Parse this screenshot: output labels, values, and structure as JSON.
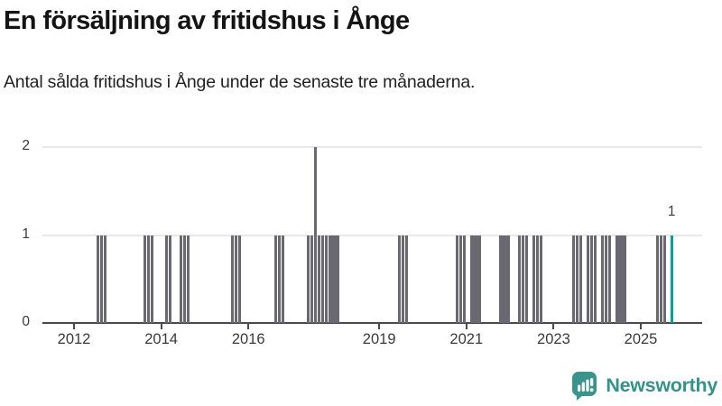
{
  "header": {
    "title": "En försäljning av fritidshus i Ånge",
    "subtitle": "Antal sålda fritidshus i Ånge under de senaste tre månaderna."
  },
  "colors": {
    "bar": "#6a6971",
    "accent": "#00a29a",
    "brand_icon": "#3a938c",
    "brand_text": "#35918b",
    "grid": "#e7e7e7",
    "axis": "#4a4a4c",
    "text": "#3a3a3a"
  },
  "chart_data": {
    "type": "bar",
    "title": "En försäljning av fritidshus i Ånge",
    "subtitle": "Antal sålda fritidshus i Ånge under de senaste tre månaderna.",
    "ylabel": "",
    "xlabel": "",
    "ylim": [
      0,
      2.15
    ],
    "yticks": [
      0,
      1,
      2
    ],
    "gridlines": [
      1,
      2
    ],
    "xticks": [
      2012,
      2014,
      2016,
      2019,
      2021,
      2023,
      2025
    ],
    "x_domain_years": [
      2011.28,
      2026.41
    ],
    "legend": "none",
    "highlight_month": "2025-09",
    "annotation": {
      "text": "1",
      "month": "2025-09"
    },
    "bars": [
      {
        "month": "2012-07",
        "value": 1
      },
      {
        "month": "2012-08",
        "value": 1
      },
      {
        "month": "2012-09",
        "value": 1
      },
      {
        "month": "2013-08",
        "value": 1
      },
      {
        "month": "2013-09",
        "value": 1
      },
      {
        "month": "2013-10",
        "value": 1
      },
      {
        "month": "2014-02",
        "value": 1
      },
      {
        "month": "2014-03",
        "value": 1
      },
      {
        "month": "2014-06",
        "value": 1
      },
      {
        "month": "2014-07",
        "value": 1
      },
      {
        "month": "2014-08",
        "value": 1
      },
      {
        "month": "2015-08",
        "value": 1
      },
      {
        "month": "2015-09",
        "value": 1
      },
      {
        "month": "2015-10",
        "value": 1
      },
      {
        "month": "2016-08",
        "value": 1
      },
      {
        "month": "2016-09",
        "value": 1
      },
      {
        "month": "2016-10",
        "value": 1
      },
      {
        "month": "2017-05",
        "value": 1
      },
      {
        "month": "2017-06",
        "value": 1
      },
      {
        "month": "2017-07",
        "value": 2
      },
      {
        "month": "2017-08",
        "value": 1
      },
      {
        "month": "2017-09",
        "value": 1
      },
      {
        "month": "2017-10",
        "value": 1
      },
      {
        "month": "2017-11",
        "value": 1
      },
      {
        "month": "2017-12",
        "value": 1
      },
      {
        "month": "2018-01",
        "value": 1
      },
      {
        "month": "2019-06",
        "value": 1
      },
      {
        "month": "2019-07",
        "value": 1
      },
      {
        "month": "2019-08",
        "value": 1
      },
      {
        "month": "2020-10",
        "value": 1
      },
      {
        "month": "2020-11",
        "value": 1
      },
      {
        "month": "2020-12",
        "value": 1
      },
      {
        "month": "2021-02",
        "value": 1
      },
      {
        "month": "2021-03",
        "value": 1
      },
      {
        "month": "2021-04",
        "value": 1
      },
      {
        "month": "2021-10",
        "value": 1
      },
      {
        "month": "2021-11",
        "value": 1
      },
      {
        "month": "2021-12",
        "value": 1
      },
      {
        "month": "2022-03",
        "value": 1
      },
      {
        "month": "2022-04",
        "value": 1
      },
      {
        "month": "2022-05",
        "value": 1
      },
      {
        "month": "2022-07",
        "value": 1
      },
      {
        "month": "2022-08",
        "value": 1
      },
      {
        "month": "2022-09",
        "value": 1
      },
      {
        "month": "2023-06",
        "value": 1
      },
      {
        "month": "2023-07",
        "value": 1
      },
      {
        "month": "2023-08",
        "value": 1
      },
      {
        "month": "2023-10",
        "value": 1
      },
      {
        "month": "2023-11",
        "value": 1
      },
      {
        "month": "2023-12",
        "value": 1
      },
      {
        "month": "2024-02",
        "value": 1
      },
      {
        "month": "2024-03",
        "value": 1
      },
      {
        "month": "2024-04",
        "value": 1
      },
      {
        "month": "2024-06",
        "value": 1
      },
      {
        "month": "2024-07",
        "value": 1
      },
      {
        "month": "2024-08",
        "value": 1
      },
      {
        "month": "2025-05",
        "value": 1
      },
      {
        "month": "2025-06",
        "value": 1
      },
      {
        "month": "2025-07",
        "value": 1
      },
      {
        "month": "2025-09",
        "value": 1
      }
    ]
  },
  "footer": {
    "brand": "Newsworthy"
  }
}
